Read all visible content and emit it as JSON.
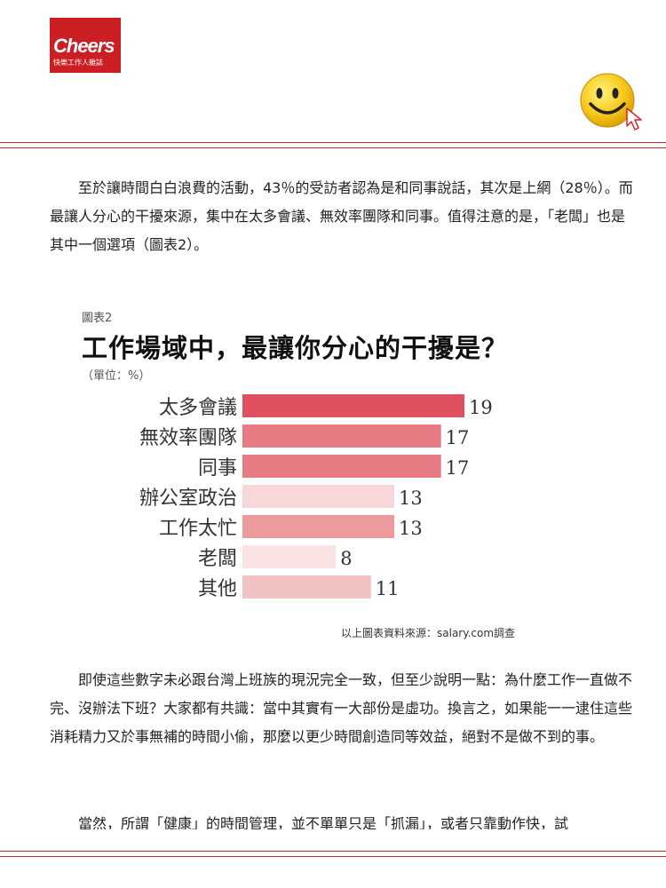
{
  "header": {
    "logo_text": "Cheers",
    "logo_subtitle": "快樂工作人雜誌",
    "colors": {
      "accent": "#c62a30",
      "logo_bg": "#cc1f24",
      "smiley": "#f7c81a"
    },
    "icons": [
      "smiley-face-icon",
      "mouse-cursor-icon"
    ]
  },
  "article": {
    "paragraph_1": "至於讓時間白白浪費的活動，43％的受訪者認為是和同事說話，其次是上網（28％）。而最讓人分心的干擾來源，集中在太多會議、無效率團隊和同事。值得注意的是，「老闆」也是其中一個選項（圖表2）。",
    "paragraph_2": "即使這些數字未必跟台灣上班族的現況完全一致，但至少說明一點：為什麼工作一直做不完、沒辦法下班？大家都有共識：當中其實有一大部份是虛功。換言之，如果能一一逮住這些消耗精力又於事無補的時間小偷，那麼以更少時間創造同等效益，絕對不是做不到的事。",
    "paragraph_3": "當然，所謂「健康」的時間管理，並不單單只是「抓漏」，或者只靠動作快，試"
  },
  "figure": {
    "label": "圖表2",
    "source": "以上圖表資料來源：salary.com調查"
  },
  "chart_data": {
    "type": "bar",
    "orientation": "horizontal",
    "title": "工作場域中，最讓你分心的干擾是？",
    "unit": "（單位：%）",
    "categories": [
      "太多會議",
      "無效率團隊",
      "同事",
      "辦公室政治",
      "工作太忙",
      "老闆",
      "其他"
    ],
    "values": [
      19,
      17,
      17,
      13,
      13,
      8,
      11
    ],
    "colors": [
      "#e0505e",
      "#e77b83",
      "#e77b83",
      "#f8d7d8",
      "#ec9a9b",
      "#fbe3e4",
      "#f2c2c3"
    ],
    "xlim": [
      0,
      19
    ],
    "grid": false,
    "legend": "none"
  }
}
